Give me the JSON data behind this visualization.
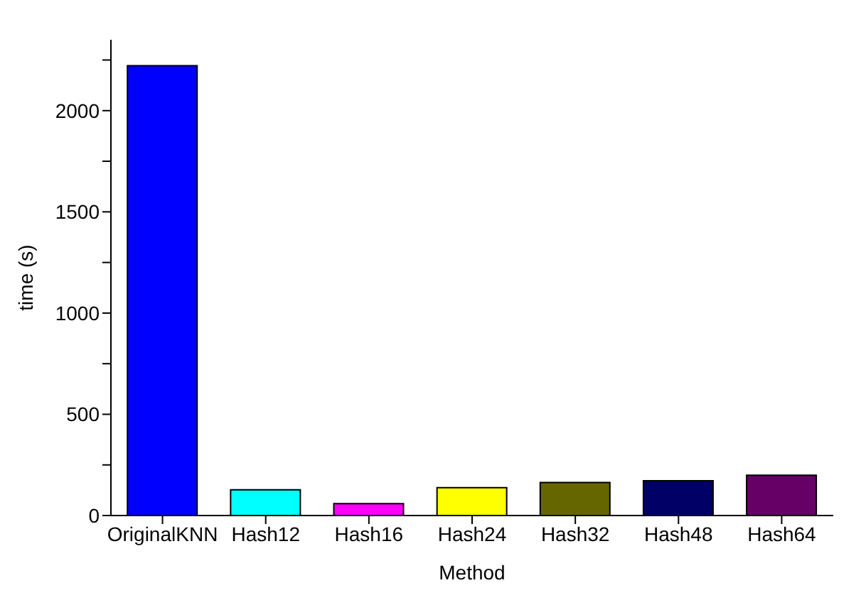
{
  "chart_data": {
    "type": "bar",
    "xlabel": "Method",
    "ylabel": "time (s)",
    "categories": [
      "OriginalKNN",
      "Hash12",
      "Hash16",
      "Hash24",
      "Hash32",
      "Hash48",
      "Hash64"
    ],
    "values": [
      2222,
      127,
      59,
      138,
      163,
      172,
      199
    ],
    "colors": [
      "#0000ff",
      "#00ffff",
      "#ff00ff",
      "#ffff00",
      "#666600",
      "#000066",
      "#660066"
    ],
    "ylim": [
      0,
      2350
    ],
    "yticks": [
      0,
      {
        "value": 250,
        "label": null
      },
      500,
      {
        "value": 750,
        "label": null
      },
      1000,
      {
        "value": 1250,
        "label": null
      },
      1500,
      {
        "value": 1750,
        "label": null
      },
      2000,
      {
        "value": 2250,
        "label": null
      }
    ],
    "grid": false,
    "legend": false
  }
}
